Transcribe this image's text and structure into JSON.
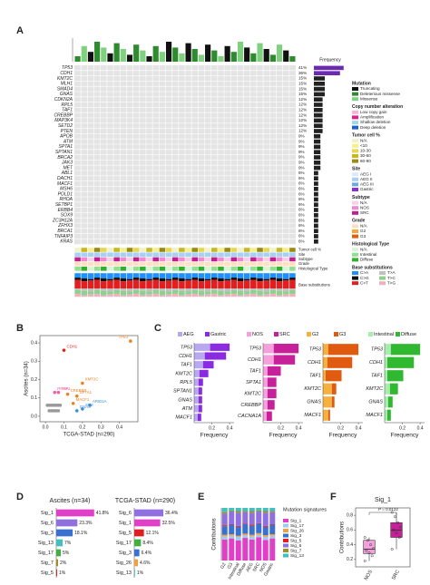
{
  "figure": {
    "panel_labels": [
      "A",
      "B",
      "C",
      "D",
      "E",
      "F"
    ],
    "oncoprint": {
      "genes": [
        "TP53",
        "CDH1",
        "KMT2C",
        "MLH1",
        "SMAD4",
        "GNAS",
        "CDKN2A",
        "RPL5",
        "TAF1",
        "CREBBP",
        "MAP3K4",
        "SETD2",
        "PTEN",
        "APOB",
        "ATM",
        "SPTA1",
        "SPTAN1",
        "BRCA2",
        "JAK3",
        "MET",
        "ABL1",
        "DACH1",
        "MACF1",
        "MSH6",
        "POLD1",
        "RHOA",
        "SETBP1",
        "ERBB4",
        "SOX9",
        "ZC3H12A",
        "ZFHX3",
        "BRCA1",
        "TNFAIP3",
        "KRAS"
      ],
      "values": [
        41,
        36,
        15,
        15,
        15,
        15,
        12,
        12,
        12,
        12,
        12,
        12,
        12,
        9,
        9,
        9,
        9,
        9,
        9,
        9,
        6,
        6,
        6,
        6,
        6,
        6,
        6,
        6,
        6,
        6,
        6,
        6,
        6,
        6
      ],
      "value_labels": [
        "41%",
        "36%",
        "15%",
        "15%",
        "15%",
        "15%",
        "12%",
        "12%",
        "12%",
        "12%",
        "12%",
        "12%",
        "12%",
        "9%",
        "9%",
        "9%",
        "9%",
        "9%",
        "9%",
        "9%",
        "6%",
        "6%",
        "6%",
        "6%",
        "6%",
        "6%",
        "6%",
        "6%",
        "6%",
        "6%",
        "6%",
        "6%",
        "6%",
        "6%"
      ],
      "xlim": [
        0,
        45
      ],
      "frequency_title": "Frequency",
      "track_labels": [
        "Tumor cell %",
        "Site",
        "Subtype",
        "Grade",
        "Histological Type",
        "Base substitutions"
      ],
      "legend": [
        {
          "title": "Mutation",
          "items": [
            {
              "label": "Truncating",
              "color": "#111111"
            },
            {
              "label": "Deleterious missense",
              "color": "#2e8b2e"
            },
            {
              "label": "Missense",
              "color": "#7fd17f"
            }
          ]
        },
        {
          "title": "Copy number alteration",
          "items": [
            {
              "label": "Low copy gain",
              "color": "#f4b6d8"
            },
            {
              "label": "Amplification",
              "color": "#e0218a"
            },
            {
              "label": "Shallow deletion",
              "color": "#9fd9f0"
            },
            {
              "label": "Deep deletion",
              "color": "#1f5fd0"
            }
          ]
        },
        {
          "title": "Tumor cell %",
          "items": [
            {
              "label": "N/A",
              "color": "#f2f2c8"
            },
            {
              "label": "<10",
              "color": "#f6f08a"
            },
            {
              "label": "10-30",
              "color": "#e6d84a"
            },
            {
              "label": "30-60",
              "color": "#c8b820"
            },
            {
              "label": "60-90",
              "color": "#9a8a10"
            }
          ]
        },
        {
          "title": "Site",
          "items": [
            {
              "label": "AEG I",
              "color": "#d9ecff"
            },
            {
              "label": "AEG II",
              "color": "#a8d0f5"
            },
            {
              "label": "AEG III",
              "color": "#6aa8e8"
            },
            {
              "label": "Gastric",
              "color": "#8a2be2"
            }
          ]
        },
        {
          "title": "Subtype",
          "items": [
            {
              "label": "N/A",
              "color": "#f5d0e8"
            },
            {
              "label": "NOS",
              "color": "#f08ad0"
            },
            {
              "label": "SRC",
              "color": "#c0208f"
            }
          ]
        },
        {
          "title": "Grade",
          "items": [
            {
              "label": "N/A",
              "color": "#fde0c0"
            },
            {
              "label": "G2",
              "color": "#f5a840"
            },
            {
              "label": "G3",
              "color": "#e06010"
            }
          ]
        },
        {
          "title": "Histological Type",
          "items": [
            {
              "label": "N/A",
              "color": "#d8f5d8"
            },
            {
              "label": "Intestinal",
              "color": "#90e090"
            },
            {
              "label": "Diffuse",
              "color": "#30b030"
            }
          ]
        },
        {
          "title": "Base substitutions",
          "items": [
            {
              "label": "C>A",
              "color": "#1e90ff"
            },
            {
              "label": "C>G",
              "color": "#111111"
            },
            {
              "label": "C>T",
              "color": "#e02020"
            },
            {
              "label": "T>A",
              "color": "#c0c0c0"
            },
            {
              "label": "T>C",
              "color": "#8fd08f"
            },
            {
              "label": "T>G",
              "color": "#f0b0c0"
            }
          ]
        }
      ]
    }
  },
  "chart_data": [
    {
      "type": "scatter",
      "xlabel": "TCGA-STAD (n=290)",
      "ylabel": "Ascites (n=34)",
      "xlim": [
        -0.03,
        0.5
      ],
      "ylim": [
        -0.03,
        0.44
      ],
      "xticks": [
        {
          "value": 0,
          "label": "0.0"
        },
        {
          "value": 0.1,
          "label": "0.1"
        },
        {
          "value": 0.2,
          "label": "0.2"
        },
        {
          "value": 0.3,
          "label": "0.3"
        },
        {
          "value": 0.4,
          "label": "0.4"
        }
      ],
      "yticks": [
        {
          "value": 0,
          "label": "0.0"
        },
        {
          "value": 0.1,
          "label": "0.1"
        },
        {
          "value": 0.2,
          "label": "0.2"
        },
        {
          "value": 0.3,
          "label": "0.3"
        },
        {
          "value": 0.4,
          "label": "0.4"
        }
      ],
      "x": [
        0.46,
        0.1,
        0.2,
        0.07,
        0.05,
        0.12,
        0.17,
        0.15,
        0.24,
        0.2,
        0.17,
        0.01,
        0.02,
        0.03,
        0.04,
        0.05,
        0.06,
        0.07,
        0.08,
        0.02,
        0.03,
        0.04,
        0.05,
        0.06,
        0.07
      ],
      "values": [
        0.41,
        0.36,
        0.18,
        0.13,
        0.13,
        0.12,
        0.11,
        0.07,
        0.06,
        0.04,
        0.03,
        0.06,
        0.06,
        0.06,
        0.06,
        0.06,
        0.06,
        0.06,
        0.06,
        0.03,
        0.03,
        0.03,
        0.03,
        0.03,
        0.03
      ],
      "labels": [
        "TP53",
        "CDH1",
        "KMT2C",
        "TAF1",
        "RHOA",
        "CREBBP",
        "SPTA1",
        "MACF1",
        "ARID1A",
        "ATM",
        "GNAS",
        null,
        null,
        null,
        null,
        null,
        null,
        null,
        null,
        null,
        null,
        null,
        null,
        null,
        null
      ],
      "colors": [
        "#f08020",
        "#e02020",
        "#f08020",
        "#f060a0",
        "#f060a0",
        "#f08020",
        "#f08020",
        "#f08020",
        "#3a8fd8",
        "#3a8fd8",
        "#3a8fd8",
        "#999999",
        "#999999",
        "#999999",
        "#999999",
        "#999999",
        "#999999",
        "#999999",
        "#999999",
        "#999999",
        "#999999",
        "#999999",
        "#999999",
        "#999999",
        "#999999"
      ]
    },
    {
      "type": "hbar_stacked",
      "xlabel": "Frequency",
      "xlim": [
        0,
        0.45
      ],
      "xticks": [
        0.2,
        0.4
      ],
      "categories": [
        "TP53",
        "CDH1",
        "TAF1",
        "KMT2C",
        "RPL5",
        "SPTAN1",
        "GNAS",
        "ATM",
        "MACF1"
      ],
      "series": [
        {
          "name": "AEG",
          "color": "#b8a8f0",
          "values": [
            0.18,
            0.12,
            0.1,
            0.06,
            0.05,
            0.05,
            0.05,
            0.05,
            0.04
          ]
        },
        {
          "name": "Gastric",
          "color": "#8a2be2",
          "values": [
            0.22,
            0.24,
            0.12,
            0.1,
            0.05,
            0.04,
            0.04,
            0.04,
            0.04
          ]
        }
      ]
    },
    {
      "type": "hbar_stacked",
      "xlabel": "Frequency",
      "xlim": [
        0,
        0.45
      ],
      "xticks": [
        0.2,
        0.4
      ],
      "categories": [
        "TP53",
        "CDH1",
        "TAF1",
        "SPTA1",
        "KMT2C",
        "CREBBP",
        "CACNA1A"
      ],
      "series": [
        {
          "name": "NOS",
          "color": "#f5a0dc",
          "values": [
            0.12,
            0.12,
            0.05,
            0.05,
            0.05,
            0.05,
            0.04
          ]
        },
        {
          "name": "SRC",
          "color": "#c8209a",
          "values": [
            0.28,
            0.24,
            0.15,
            0.1,
            0.1,
            0.08,
            0.06
          ]
        }
      ]
    },
    {
      "type": "hbar_stacked",
      "xlabel": "Frequency",
      "xlim": [
        0,
        0.45
      ],
      "xticks": [
        0.2,
        0.4
      ],
      "categories": [
        "TP53",
        "CDH1",
        "TAF1",
        "KMT2C",
        "GNAS",
        "MACF1"
      ],
      "series": [
        {
          "name": "G2",
          "color": "#f5b040",
          "values": [
            0.06,
            0.05,
            0.03,
            0.1,
            0.1,
            0.06
          ]
        },
        {
          "name": "G3",
          "color": "#e05a10",
          "values": [
            0.34,
            0.28,
            0.18,
            0.05,
            0.03,
            0.02
          ]
        }
      ]
    },
    {
      "type": "hbar_stacked",
      "xlabel": "Frequency",
      "xlim": [
        0,
        0.45
      ],
      "xticks": [
        0.2,
        0.4
      ],
      "categories": [
        "TP53",
        "CDH1",
        "TAF1",
        "KMT2C",
        "GNAS",
        "MACF1"
      ],
      "series": [
        {
          "name": "Intestinal",
          "color": "#a8ecb0",
          "values": [
            0.07,
            0.03,
            0.03,
            0.06,
            0.04,
            0.03
          ]
        },
        {
          "name": "Diffuse",
          "color": "#30b830",
          "values": [
            0.33,
            0.3,
            0.18,
            0.09,
            0.05,
            0.04
          ]
        }
      ]
    },
    {
      "type": "hbar",
      "title": "Ascites (n=34)",
      "xlim": [
        0,
        50
      ],
      "categories": [
        "Sig_1",
        "Sig_6",
        "Sig_3",
        "Sig_13",
        "Sig_17",
        "Sig_7",
        "Sig_5"
      ],
      "values": [
        41.8,
        23.3,
        18.1,
        7,
        5,
        2,
        1
      ],
      "value_labels": [
        "41.8%",
        "23.3%",
        "18.1%",
        "7%",
        "5%",
        "2%",
        "1%"
      ],
      "colors": [
        "#e040c8",
        "#9070e0",
        "#3a70d0",
        "#40c0c0",
        "#40b040",
        "#a09020",
        "#e02020"
      ]
    },
    {
      "type": "hbar",
      "title": "TCGA-STAD (n=290)",
      "xlim": [
        0,
        50
      ],
      "categories": [
        "Sig_6",
        "Sig_1",
        "Sig_5",
        "Sig_17",
        "Sig_3",
        "Sig_26",
        "Sig_13"
      ],
      "values": [
        36.4,
        32.5,
        12.1,
        8.4,
        6.4,
        4.6,
        1
      ],
      "value_labels": [
        "36.4%",
        "32.5%",
        "12.1%",
        "8.4%",
        "6.4%",
        "4.6%",
        "1%"
      ],
      "colors": [
        "#9070e0",
        "#e040c8",
        "#e02020",
        "#40b040",
        "#3a70d0",
        "#f0a040",
        "#40c0c0"
      ]
    },
    {
      "type": "stacked_bar",
      "ylabel": "Contributions",
      "legend_title": "Mutation signatures",
      "ylim": [
        0,
        1
      ],
      "categories": [
        "G2",
        "G3",
        "Intestinal",
        "Diffuse",
        "AEG",
        "SRC",
        "NOS",
        "Gastric"
      ],
      "series": [
        {
          "name": "Sig_1",
          "color": "#e040c8",
          "values": [
            0.4,
            0.42,
            0.38,
            0.43,
            0.4,
            0.44,
            0.39,
            0.42
          ]
        },
        {
          "name": "Sig_17",
          "color": "#a0c8f0",
          "values": [
            0.06,
            0.05,
            0.07,
            0.05,
            0.06,
            0.05,
            0.06,
            0.05
          ]
        },
        {
          "name": "Sig_26",
          "color": "#f0a040",
          "values": [
            0.03,
            0.03,
            0.02,
            0.03,
            0.03,
            0.03,
            0.03,
            0.03
          ]
        },
        {
          "name": "Sig_3",
          "color": "#3a70d0",
          "values": [
            0.16,
            0.18,
            0.17,
            0.18,
            0.17,
            0.18,
            0.16,
            0.18
          ]
        },
        {
          "name": "Sig_5",
          "color": "#e02020",
          "values": [
            0.02,
            0.01,
            0.02,
            0.01,
            0.02,
            0.01,
            0.02,
            0.01
          ]
        },
        {
          "name": "Sig_6",
          "color": "#9070e0",
          "values": [
            0.22,
            0.24,
            0.25,
            0.22,
            0.23,
            0.22,
            0.25,
            0.23
          ]
        },
        {
          "name": "Sig_7",
          "color": "#a09020",
          "values": [
            0.03,
            0.02,
            0.03,
            0.02,
            0.03,
            0.02,
            0.03,
            0.02
          ]
        },
        {
          "name": "Sig_13",
          "color": "#40c0c0",
          "values": [
            0.08,
            0.05,
            0.06,
            0.06,
            0.06,
            0.05,
            0.06,
            0.06
          ]
        }
      ]
    },
    {
      "type": "box",
      "title": "Sig_1",
      "ylabel": "Contributions",
      "annotation": "P = 0.0122",
      "ylim": [
        0.1,
        0.9
      ],
      "yticks": [
        0.2,
        0.4,
        0.6,
        0.8
      ],
      "categories": [
        "NOS",
        "SRC"
      ],
      "colors": [
        "#f5a0dc",
        "#c8209a"
      ],
      "whisker_low": [
        0.18,
        0.34
      ],
      "q1": [
        0.28,
        0.5
      ],
      "median": [
        0.34,
        0.6
      ],
      "q3": [
        0.46,
        0.7
      ],
      "whisker_high": [
        0.5,
        0.84
      ],
      "points": [
        [
          0.18,
          0.25,
          0.29,
          0.32,
          0.35,
          0.4,
          0.46,
          0.5
        ],
        [
          0.34,
          0.5,
          0.56,
          0.6,
          0.64,
          0.7,
          0.78,
          0.84
        ]
      ]
    }
  ]
}
